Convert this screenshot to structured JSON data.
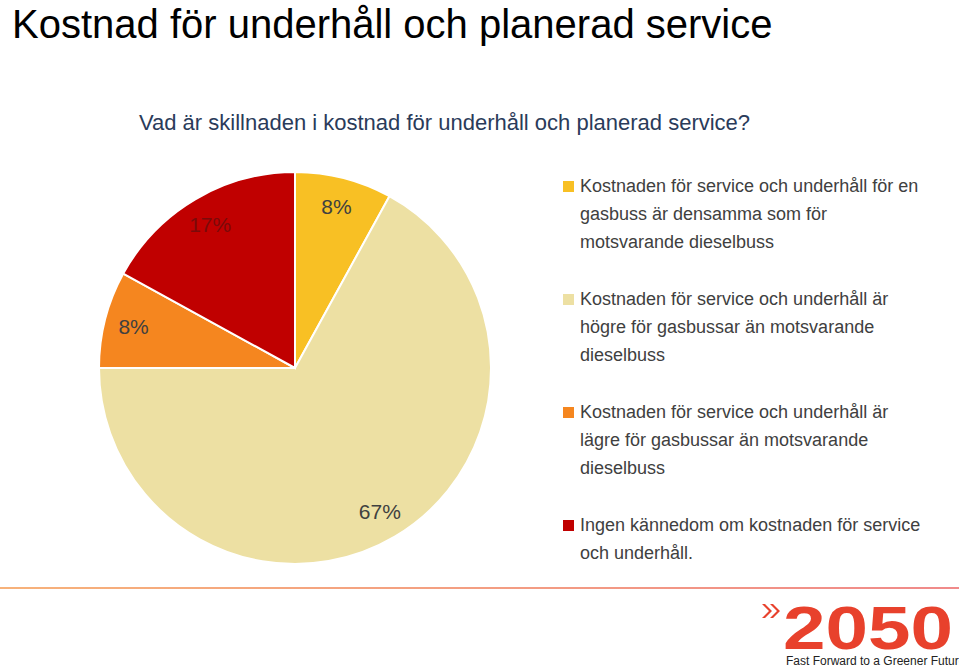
{
  "chart_data": {
    "type": "pie",
    "title": "Kostnad för underhåll och planerad service",
    "subtitle": "Vad är skillnaden i kostnad för underhåll och planerad service?",
    "categories": [
      "Kostnaden för service och underhåll för en gasbuss är densamma som för motsvarande dieselbuss",
      "Kostnaden för service och underhåll är högre för gasbussar än motsvarande dieselbuss",
      "Kostnaden för service och underhåll är lägre för gasbussar än motsvarande dieselbuss",
      "Ingen kännedom om kostnaden för service och underhåll."
    ],
    "values": [
      8,
      67,
      8,
      17
    ],
    "value_labels": [
      "8%",
      "67%",
      "8%",
      "17%"
    ],
    "colors": [
      "#f8c024",
      "#ede0a3",
      "#f5861f",
      "#c00000"
    ],
    "data_labels": true,
    "legend": "right"
  },
  "logo": {
    "text": "2050",
    "tagline": "Fast Forward to a Greener Future"
  }
}
